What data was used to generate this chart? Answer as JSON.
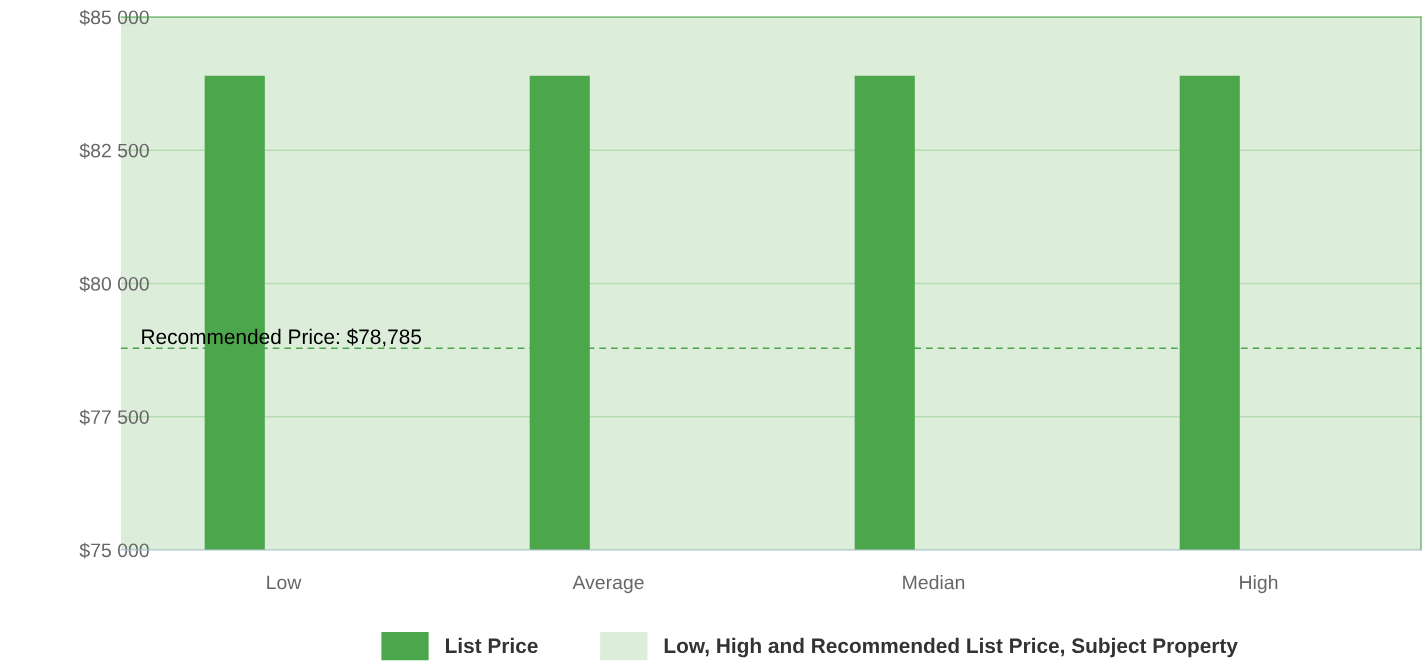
{
  "chart_data": {
    "type": "bar",
    "categories": [
      "Low",
      "Average",
      "Median",
      "High"
    ],
    "series": [
      {
        "name": "List Price",
        "color": "#4ca64c",
        "values": [
          83900,
          83900,
          83900,
          83900
        ]
      }
    ],
    "ylim": [
      75000,
      85000
    ],
    "yticks": [
      {
        "value": 75000,
        "label": "$75 000"
      },
      {
        "value": 77500,
        "label": "$77 500"
      },
      {
        "value": 80000,
        "label": "$80 000"
      },
      {
        "value": 82500,
        "label": "$82 500"
      },
      {
        "value": 85000,
        "label": "$85 000"
      }
    ],
    "bands": [
      {
        "axis": "y",
        "from": 75000,
        "to": 85000,
        "label": "Low, High and Recommended List Price, Subject Property",
        "color": "#dcedda"
      }
    ],
    "ref_lines": [
      {
        "axis": "y",
        "value": 78785,
        "label": "Recommended Price: $78,785",
        "color": "#4ca64c",
        "line_style": "dashed"
      }
    ],
    "grid": "y",
    "legend": "bottom"
  }
}
